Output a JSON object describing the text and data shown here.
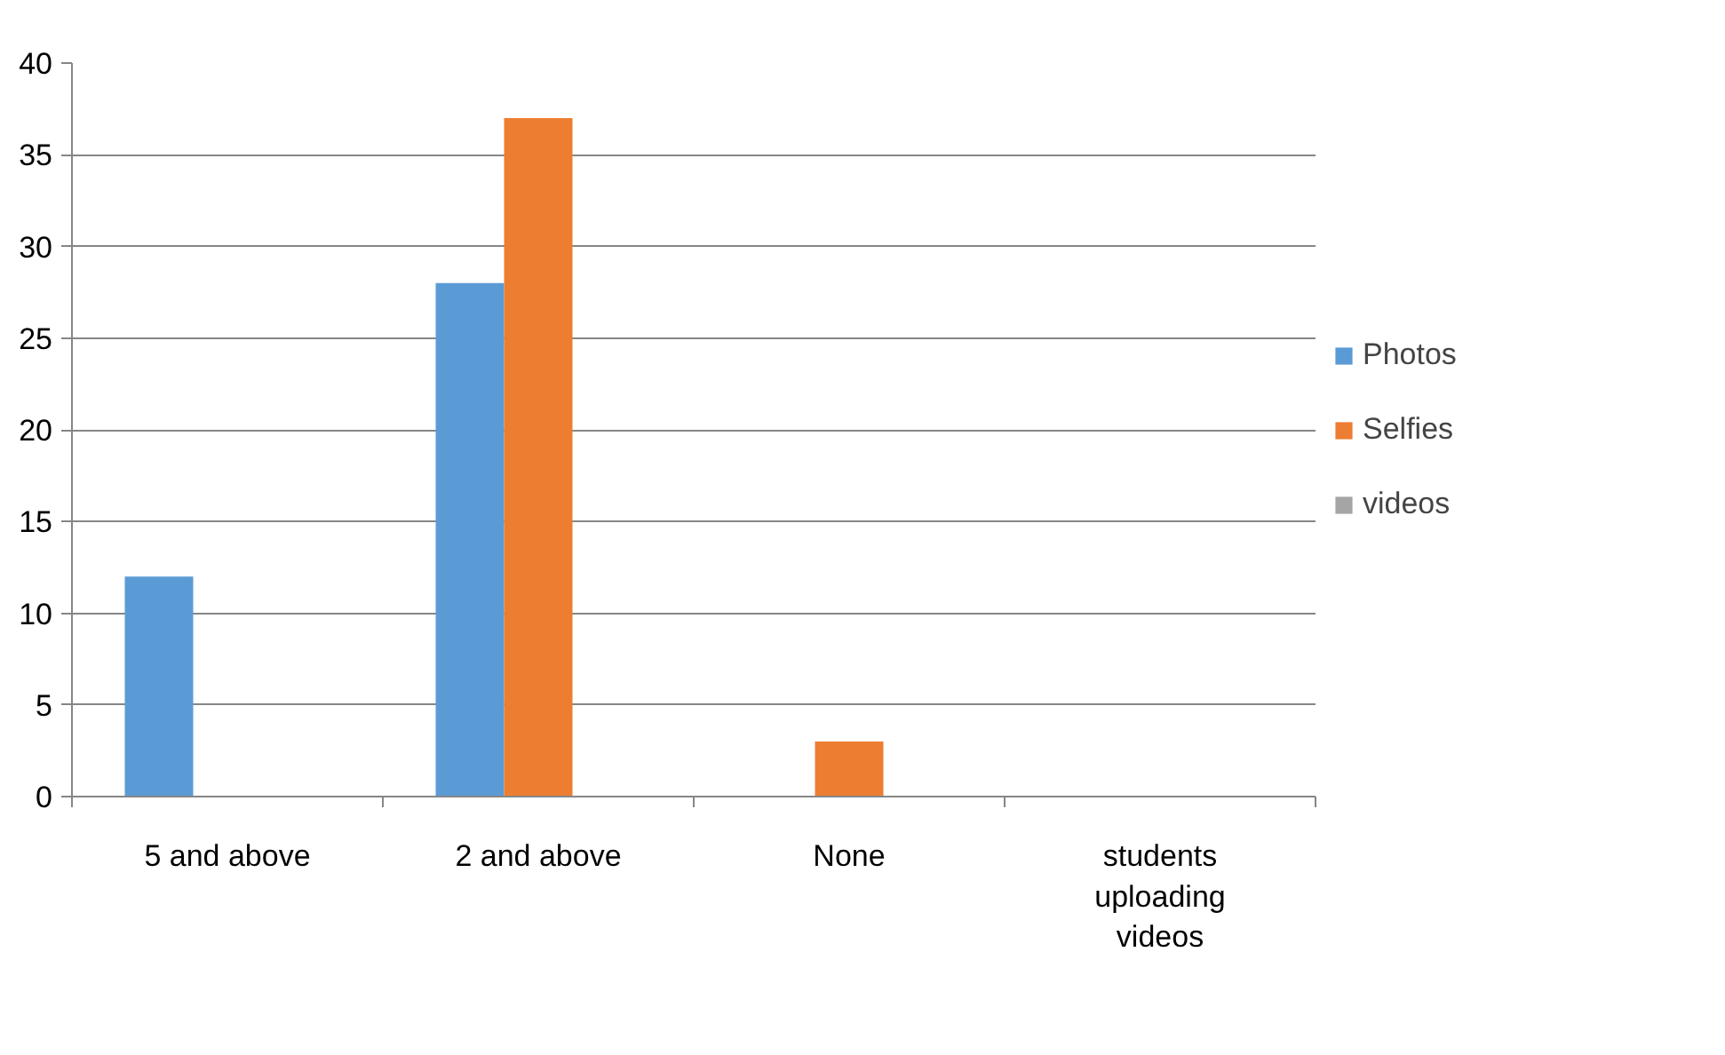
{
  "chart_data": {
    "type": "bar",
    "categories": [
      "5 and above",
      "2 and above",
      "None",
      "students uploading videos"
    ],
    "series": [
      {
        "name": "Photos",
        "color": "#5b9bd5",
        "values": [
          12,
          28,
          0,
          0
        ]
      },
      {
        "name": "Selfies",
        "color": "#ed7d31",
        "values": [
          0,
          37,
          3,
          0
        ]
      },
      {
        "name": "videos",
        "color": "#a5a5a5",
        "values": [
          0,
          0,
          0,
          0
        ]
      }
    ],
    "ylim": [
      0,
      40
    ],
    "yticks": [
      0,
      5,
      10,
      15,
      20,
      25,
      30,
      35,
      40
    ],
    "grid": "y",
    "legend": "right"
  }
}
